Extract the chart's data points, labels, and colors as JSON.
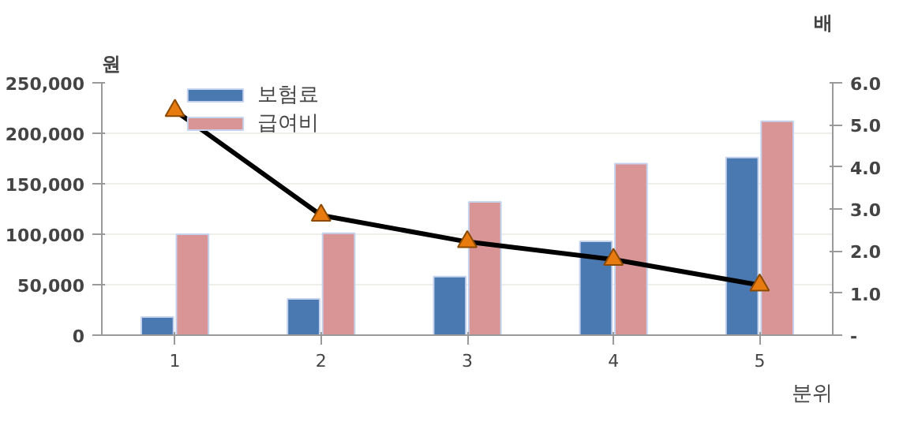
{
  "chart_data": {
    "type": "bar",
    "categories": [
      "1",
      "2",
      "3",
      "4",
      "5"
    ],
    "xlabel": "분위",
    "ylabel": "원",
    "y2label": "배",
    "series": [
      {
        "name": "보험료",
        "color": "#4a78b0",
        "values": [
          18000,
          36000,
          58000,
          93000,
          176000
        ]
      },
      {
        "name": "급여비",
        "color": "#d99595",
        "values": [
          100000,
          101000,
          132000,
          170000,
          212000
        ]
      },
      {
        "type": "line",
        "axis": "y2",
        "color": "#000000",
        "marker": "triangle",
        "values": [
          5.34,
          2.85,
          2.22,
          1.8,
          1.19
        ]
      }
    ],
    "ylim": [
      0,
      250000
    ],
    "yticks": [
      {
        "value": 0,
        "label": "0"
      },
      {
        "value": 50000,
        "label": "50,000"
      },
      {
        "value": 100000,
        "label": "100,000"
      },
      {
        "value": 150000,
        "label": "150,000"
      },
      {
        "value": 200000,
        "label": "200,000"
      },
      {
        "value": 250000,
        "label": "250,000"
      }
    ],
    "y2lim": [
      0,
      6
    ],
    "y2ticks": [
      {
        "value": 0,
        "label": "-"
      },
      {
        "value": 1,
        "label": "1.0"
      },
      {
        "value": 2,
        "label": "2.0"
      },
      {
        "value": 3,
        "label": "3.0"
      },
      {
        "value": 4,
        "label": "4.0"
      },
      {
        "value": 5,
        "label": "5.0"
      },
      {
        "value": 6,
        "label": "6.0"
      }
    ],
    "grid": "y",
    "legend": "top left"
  }
}
